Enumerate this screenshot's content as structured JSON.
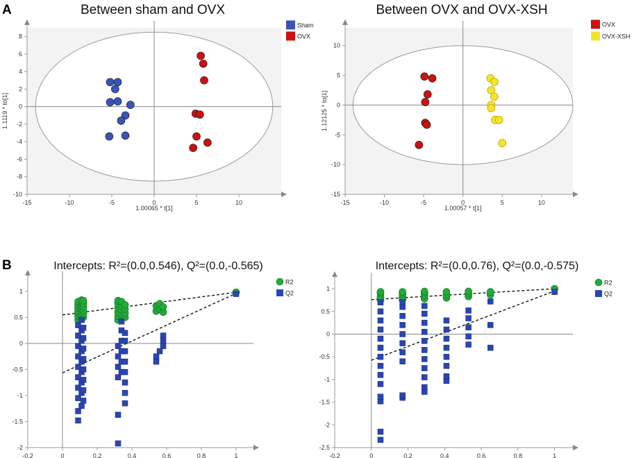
{
  "panel_a_label": "A",
  "panel_b_label": "B",
  "chart_data": [
    {
      "id": "a1",
      "type": "scatter",
      "title": "Between sham and OVX",
      "xlabel": "1.00065 * t[1]",
      "ylabel": "1.1119 * to[1]",
      "xlim": [
        -15,
        15
      ],
      "ylim": [
        -10,
        9
      ],
      "xticks": [
        -15,
        -10,
        -5,
        0,
        5,
        10
      ],
      "yticks": [
        -10,
        -8,
        -6,
        -4,
        -2,
        0,
        2,
        4,
        6,
        8
      ],
      "ellipse": {
        "cx": 0,
        "cy": 0,
        "rx": 14,
        "ry": 8.5
      },
      "series": [
        {
          "name": "Sham",
          "color": "#3a55b8",
          "points": [
            [
              -5.2,
              2.8
            ],
            [
              -4.3,
              2.8
            ],
            [
              -4.6,
              2.0
            ],
            [
              -5.2,
              0.5
            ],
            [
              -4.3,
              0.6
            ],
            [
              -2.8,
              0.2
            ],
            [
              -3.4,
              -1.0
            ],
            [
              -3.9,
              -1.6
            ],
            [
              -5.3,
              -3.4
            ],
            [
              -3.4,
              -3.3
            ]
          ]
        },
        {
          "name": "OVX",
          "color": "#cc1111",
          "points": [
            [
              5.5,
              5.8
            ],
            [
              5.8,
              4.9
            ],
            [
              5.9,
              3.0
            ],
            [
              4.9,
              -0.8
            ],
            [
              5.4,
              -0.9
            ],
            [
              5.0,
              -3.4
            ],
            [
              6.3,
              -4.1
            ],
            [
              4.6,
              -4.7
            ]
          ]
        }
      ]
    },
    {
      "id": "a2",
      "type": "scatter",
      "title": "Between OVX and OVX-XSH",
      "xlabel": "1.00057 * t[1]",
      "ylabel": "1.12125 * to[1]",
      "xlim": [
        -15,
        14
      ],
      "ylim": [
        -15,
        13
      ],
      "xticks": [
        -15,
        -10,
        -5,
        0,
        5,
        10
      ],
      "yticks": [
        -15,
        -10,
        -5,
        0,
        5,
        10
      ],
      "ellipse": {
        "cx": 0,
        "cy": 0,
        "rx": 14,
        "ry": 10
      },
      "series": [
        {
          "name": "OVX",
          "color": "#cc1111",
          "points": [
            [
              -4.9,
              4.8
            ],
            [
              -3.9,
              4.5
            ],
            [
              -4.5,
              1.8
            ],
            [
              -4.8,
              0.5
            ],
            [
              -4.8,
              -3.0
            ],
            [
              -4.6,
              -3.3
            ],
            [
              -5.6,
              -6.7
            ]
          ]
        },
        {
          "name": "OVX-XSH",
          "color": "#f4e428",
          "points": [
            [
              3.5,
              4.5
            ],
            [
              4.0,
              3.9
            ],
            [
              3.6,
              2.5
            ],
            [
              4.0,
              1.4
            ],
            [
              3.6,
              0.0
            ],
            [
              3.6,
              -0.5
            ],
            [
              4.1,
              -2.5
            ],
            [
              4.6,
              -2.5
            ],
            [
              5.0,
              -6.4
            ]
          ]
        }
      ]
    },
    {
      "id": "b1",
      "type": "scatter",
      "title": "Intercepts: R²=(0.0,0.546), Q²=(0.0,-0.565)",
      "xlim": [
        -0.2,
        1.1
      ],
      "ylim": [
        -2,
        1.25
      ],
      "xticks": [
        -0.2,
        0,
        0.2,
        0.4,
        0.6,
        0.8,
        1
      ],
      "yticks": [
        -2,
        -1.5,
        -1,
        -0.5,
        0,
        0.5,
        1
      ],
      "lines": [
        {
          "name": "R2",
          "from": [
            0,
            0.546
          ],
          "to": [
            1,
            0.98
          ]
        },
        {
          "name": "Q2",
          "from": [
            0,
            -0.565
          ],
          "to": [
            1,
            0.96
          ]
        }
      ],
      "series": [
        {
          "name": "R2",
          "color": "#22aa3a",
          "shape": "circle",
          "points": [
            [
              1,
              0.98
            ],
            [
              0.09,
              0.45
            ],
            [
              0.09,
              0.52
            ],
            [
              0.09,
              0.58
            ],
            [
              0.09,
              0.62
            ],
            [
              0.09,
              0.68
            ],
            [
              0.09,
              0.74
            ],
            [
              0.09,
              0.8
            ],
            [
              0.11,
              0.48
            ],
            [
              0.11,
              0.55
            ],
            [
              0.11,
              0.6
            ],
            [
              0.11,
              0.66
            ],
            [
              0.11,
              0.72
            ],
            [
              0.11,
              0.78
            ],
            [
              0.11,
              0.83
            ],
            [
              0.12,
              0.5
            ],
            [
              0.12,
              0.57
            ],
            [
              0.12,
              0.63
            ],
            [
              0.12,
              0.7
            ],
            [
              0.12,
              0.76
            ],
            [
              0.12,
              0.82
            ],
            [
              0.32,
              0.45
            ],
            [
              0.32,
              0.52
            ],
            [
              0.32,
              0.6
            ],
            [
              0.32,
              0.68
            ],
            [
              0.32,
              0.76
            ],
            [
              0.32,
              0.82
            ],
            [
              0.34,
              0.48
            ],
            [
              0.34,
              0.56
            ],
            [
              0.34,
              0.64
            ],
            [
              0.34,
              0.72
            ],
            [
              0.34,
              0.8
            ],
            [
              0.36,
              0.5
            ],
            [
              0.36,
              0.58
            ],
            [
              0.36,
              0.66
            ],
            [
              0.36,
              0.74
            ],
            [
              0.54,
              0.62
            ],
            [
              0.54,
              0.72
            ],
            [
              0.56,
              0.66
            ],
            [
              0.56,
              0.76
            ],
            [
              0.58,
              0.6
            ],
            [
              0.58,
              0.7
            ]
          ]
        },
        {
          "name": "Q2",
          "color": "#2a45b2",
          "shape": "square",
          "points": [
            [
              1,
              0.95
            ],
            [
              0.09,
              -1.48
            ],
            [
              0.09,
              -1.3
            ],
            [
              0.09,
              -1.05
            ],
            [
              0.09,
              -0.85
            ],
            [
              0.09,
              -0.65
            ],
            [
              0.09,
              -0.45
            ],
            [
              0.09,
              -0.25
            ],
            [
              0.09,
              -0.05
            ],
            [
              0.09,
              0.15
            ],
            [
              0.09,
              0.35
            ],
            [
              0.11,
              -1.2
            ],
            [
              0.11,
              -0.95
            ],
            [
              0.11,
              -0.75
            ],
            [
              0.11,
              -0.55
            ],
            [
              0.11,
              -0.35
            ],
            [
              0.11,
              -0.15
            ],
            [
              0.11,
              0.05
            ],
            [
              0.11,
              0.25
            ],
            [
              0.11,
              0.45
            ],
            [
              0.12,
              -1.1
            ],
            [
              0.12,
              -0.9
            ],
            [
              0.12,
              -0.7
            ],
            [
              0.12,
              -0.5
            ],
            [
              0.12,
              -0.3
            ],
            [
              0.12,
              -0.1
            ],
            [
              0.12,
              0.1
            ],
            [
              0.12,
              0.3
            ],
            [
              0.32,
              -1.92
            ],
            [
              0.32,
              -1.37
            ],
            [
              0.32,
              -0.65
            ],
            [
              0.32,
              -0.45
            ],
            [
              0.32,
              -0.25
            ],
            [
              0.32,
              -0.05
            ],
            [
              0.34,
              -0.55
            ],
            [
              0.34,
              -0.35
            ],
            [
              0.34,
              -0.15
            ],
            [
              0.34,
              0.05
            ],
            [
              0.34,
              0.25
            ],
            [
              0.34,
              0.42
            ],
            [
              0.36,
              -1.15
            ],
            [
              0.36,
              -0.95
            ],
            [
              0.36,
              -0.75
            ],
            [
              0.36,
              -0.55
            ],
            [
              0.36,
              -0.35
            ],
            [
              0.36,
              -0.15
            ],
            [
              0.36,
              0.05
            ],
            [
              0.36,
              0.2
            ],
            [
              0.54,
              -0.35
            ],
            [
              0.54,
              -0.25
            ],
            [
              0.56,
              -0.15
            ],
            [
              0.58,
              -0.05
            ],
            [
              0.58,
              0.05
            ],
            [
              0.58,
              0.15
            ]
          ]
        }
      ]
    },
    {
      "id": "b2",
      "type": "scatter",
      "title": "Intercepts: R²=(0.0,0.76), Q²=(0.0,-0.575)",
      "xlim": [
        -0.2,
        1.1
      ],
      "ylim": [
        -2.5,
        1.2
      ],
      "xticks": [
        -0.2,
        0,
        0.2,
        0.4,
        0.6,
        0.8,
        1
      ],
      "yticks": [
        -2.5,
        -2,
        -1.5,
        -1,
        -0.5,
        0,
        0.5,
        1
      ],
      "lines": [
        {
          "name": "R2",
          "from": [
            0,
            0.76
          ],
          "to": [
            1,
            1.0
          ]
        },
        {
          "name": "Q2",
          "from": [
            0,
            -0.575
          ],
          "to": [
            1,
            0.95
          ]
        }
      ],
      "series": [
        {
          "name": "R2",
          "color": "#22aa3a",
          "shape": "circle",
          "points": [
            [
              1,
              1.0
            ],
            [
              0.05,
              0.75
            ],
            [
              0.05,
              0.82
            ],
            [
              0.05,
              0.89
            ],
            [
              0.05,
              0.93
            ],
            [
              0.17,
              0.76
            ],
            [
              0.17,
              0.83
            ],
            [
              0.17,
              0.89
            ],
            [
              0.17,
              0.93
            ],
            [
              0.29,
              0.78
            ],
            [
              0.29,
              0.85
            ],
            [
              0.29,
              0.91
            ],
            [
              0.29,
              0.94
            ],
            [
              0.41,
              0.8
            ],
            [
              0.41,
              0.87
            ],
            [
              0.41,
              0.93
            ],
            [
              0.53,
              0.83
            ],
            [
              0.53,
              0.89
            ],
            [
              0.53,
              0.94
            ],
            [
              0.65,
              0.87
            ],
            [
              0.65,
              0.93
            ]
          ]
        },
        {
          "name": "Q2",
          "color": "#2a45b2",
          "shape": "square",
          "points": [
            [
              1,
              0.93
            ],
            [
              0.05,
              -2.33
            ],
            [
              0.05,
              -2.15
            ],
            [
              0.05,
              -1.48
            ],
            [
              0.05,
              -1.38
            ],
            [
              0.05,
              -1.1
            ],
            [
              0.05,
              -0.9
            ],
            [
              0.05,
              -0.7
            ],
            [
              0.05,
              -0.5
            ],
            [
              0.05,
              -0.3
            ],
            [
              0.05,
              -0.1
            ],
            [
              0.05,
              0.1
            ],
            [
              0.05,
              0.3
            ],
            [
              0.05,
              0.5
            ],
            [
              0.05,
              0.7
            ],
            [
              0.17,
              -1.4
            ],
            [
              0.17,
              -1.35
            ],
            [
              0.17,
              -0.6
            ],
            [
              0.17,
              -0.4
            ],
            [
              0.17,
              -0.2
            ],
            [
              0.17,
              0.0
            ],
            [
              0.17,
              0.2
            ],
            [
              0.17,
              0.4
            ],
            [
              0.17,
              0.6
            ],
            [
              0.17,
              0.7
            ],
            [
              0.29,
              -1.27
            ],
            [
              0.29,
              -1.17
            ],
            [
              0.29,
              -0.95
            ],
            [
              0.29,
              -0.75
            ],
            [
              0.29,
              -0.55
            ],
            [
              0.29,
              -0.35
            ],
            [
              0.29,
              -0.15
            ],
            [
              0.29,
              0.05
            ],
            [
              0.29,
              0.25
            ],
            [
              0.29,
              0.45
            ],
            [
              0.29,
              0.62
            ],
            [
              0.41,
              -1.03
            ],
            [
              0.41,
              -0.93
            ],
            [
              0.41,
              -0.7
            ],
            [
              0.41,
              -0.5
            ],
            [
              0.41,
              -0.3
            ],
            [
              0.41,
              -0.1
            ],
            [
              0.41,
              0.1
            ],
            [
              0.41,
              0.3
            ],
            [
              0.53,
              -0.23
            ],
            [
              0.53,
              -0.05
            ],
            [
              0.53,
              0.15
            ],
            [
              0.53,
              0.35
            ],
            [
              0.53,
              0.52
            ],
            [
              0.65,
              -0.3
            ],
            [
              0.65,
              0.2
            ],
            [
              0.65,
              0.72
            ]
          ]
        }
      ]
    }
  ]
}
